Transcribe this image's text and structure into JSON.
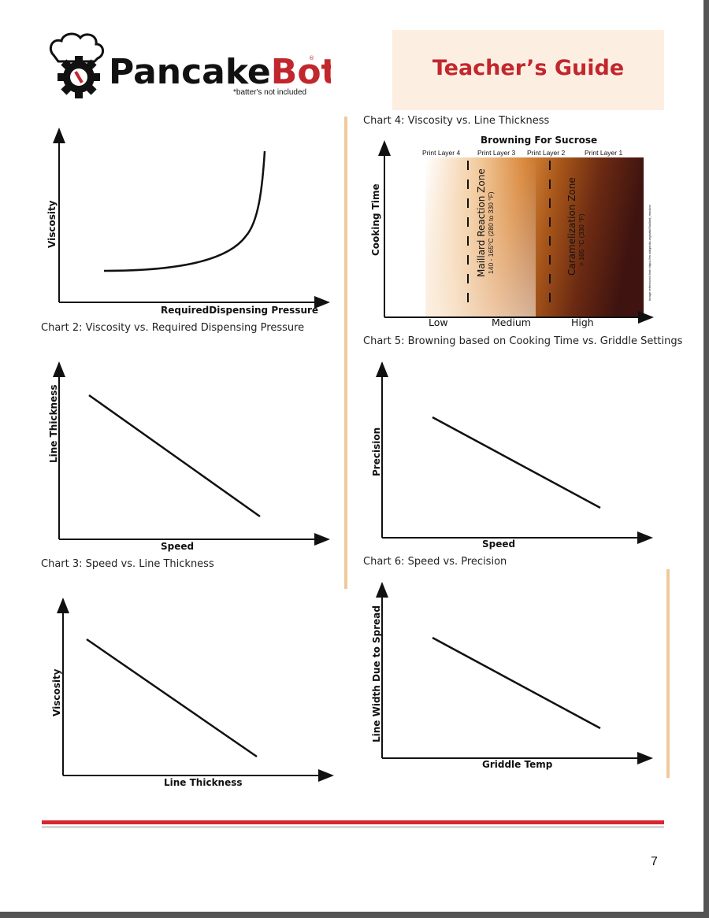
{
  "header": {
    "brand_pancake": "Pancake",
    "brand_bot": "Bot",
    "brand_registered": "®",
    "tagline": "*batter's not included",
    "guide_title": "Teacher’s Guide",
    "colors": {
      "brand_red": "#c1272d",
      "guide_box": "#fdeee2",
      "divider": "#f0ca9c"
    }
  },
  "charts": {
    "c2": {
      "caption": "Chart 2:  Viscosity vs. Required Dispensing Pressure",
      "ylabel": "Viscosity",
      "xlabel": "RequiredDispensing Pressure"
    },
    "c3": {
      "caption": "Chart 3:  Speed vs. Line Thickness",
      "ylabel": "Line Thickness",
      "xlabel": "Speed"
    },
    "c4b": {
      "ylabel": "Viscosity",
      "xlabel": "Line Thickness"
    },
    "c4": {
      "caption": "Chart 4: Viscosity vs. Line Thickness"
    },
    "c5": {
      "caption": "Chart 5:  Browning based on Cooking Time vs. Griddle Settings",
      "title": "Browning For Sucrose",
      "ylabel": "Cooking Time",
      "layers": [
        "Print Layer 4",
        "Print Layer 3",
        "Print Layer 2",
        "Print Layer 1"
      ],
      "zone1_title": "Maillard Reaction Zone",
      "zone1_range": "140 - 165°C (280 to 330 °F)",
      "zone2_title": "Caramelization Zone",
      "zone2_range": "> 165 °C (330 °F)",
      "ticks": [
        "Low",
        "Medium",
        "High"
      ],
      "credit": "Image referenced from https://en.wikipedia.org/wiki/Maillard_reaction"
    },
    "c6": {
      "caption": "Chart 6:  Speed vs. Precision",
      "ylabel": "Precision",
      "xlabel": "Speed"
    },
    "c7": {
      "ylabel": "Line Width Due to Spread",
      "xlabel": "Griddle Temp"
    }
  },
  "footer": {
    "page_number": "7"
  }
}
